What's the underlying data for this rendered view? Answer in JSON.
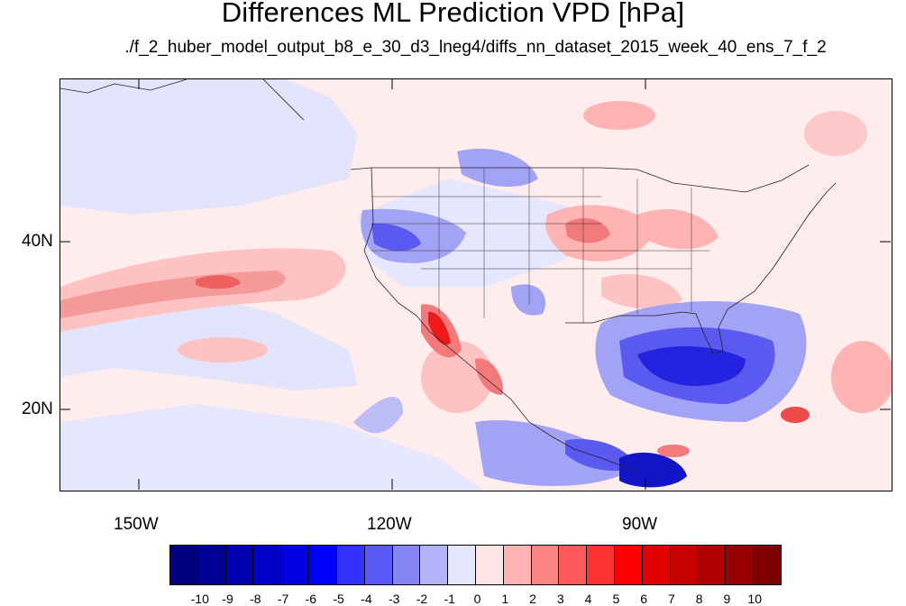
{
  "title": "Differences ML Prediction VPD [hPa]",
  "subtitle": "./f_2_huber_model_output_b8_e_30_d3_lneg4/diffs_nn_dataset_2015_week_40_ens_7_f_2",
  "map": {
    "lat_labels": [
      "40N",
      "20N"
    ],
    "lon_labels": [
      "150W",
      "120W",
      "90W"
    ],
    "colors": {
      "background_positive": "#ffecec",
      "light_blue": "#e6e6ff",
      "mid_blue": "#9a9af5",
      "strong_blue": "#3a3af0",
      "deep_blue": "#1515c8",
      "light_red": "#ffc2c2",
      "mid_red": "#f27a7a",
      "strong_red": "#ee1a1a",
      "coastline": "#222222"
    }
  },
  "colorbar": {
    "labels": [
      "-10",
      "-9",
      "-8",
      "-7",
      "-6",
      "-5",
      "-4",
      "-3",
      "-2",
      "-1",
      "0",
      "1",
      "2",
      "3",
      "4",
      "5",
      "6",
      "7",
      "8",
      "9",
      "10"
    ],
    "colors": [
      "#00007f",
      "#000096",
      "#0000b0",
      "#0000c8",
      "#0000e0",
      "#0000ff",
      "#3333ff",
      "#5959f5",
      "#8585f2",
      "#b3b3f5",
      "#e6e6ff",
      "#ffe6e6",
      "#ffb3b3",
      "#ff8585",
      "#ff5959",
      "#ff3333",
      "#ff0000",
      "#e00000",
      "#c80000",
      "#b00000",
      "#960000",
      "#7f0000"
    ]
  }
}
